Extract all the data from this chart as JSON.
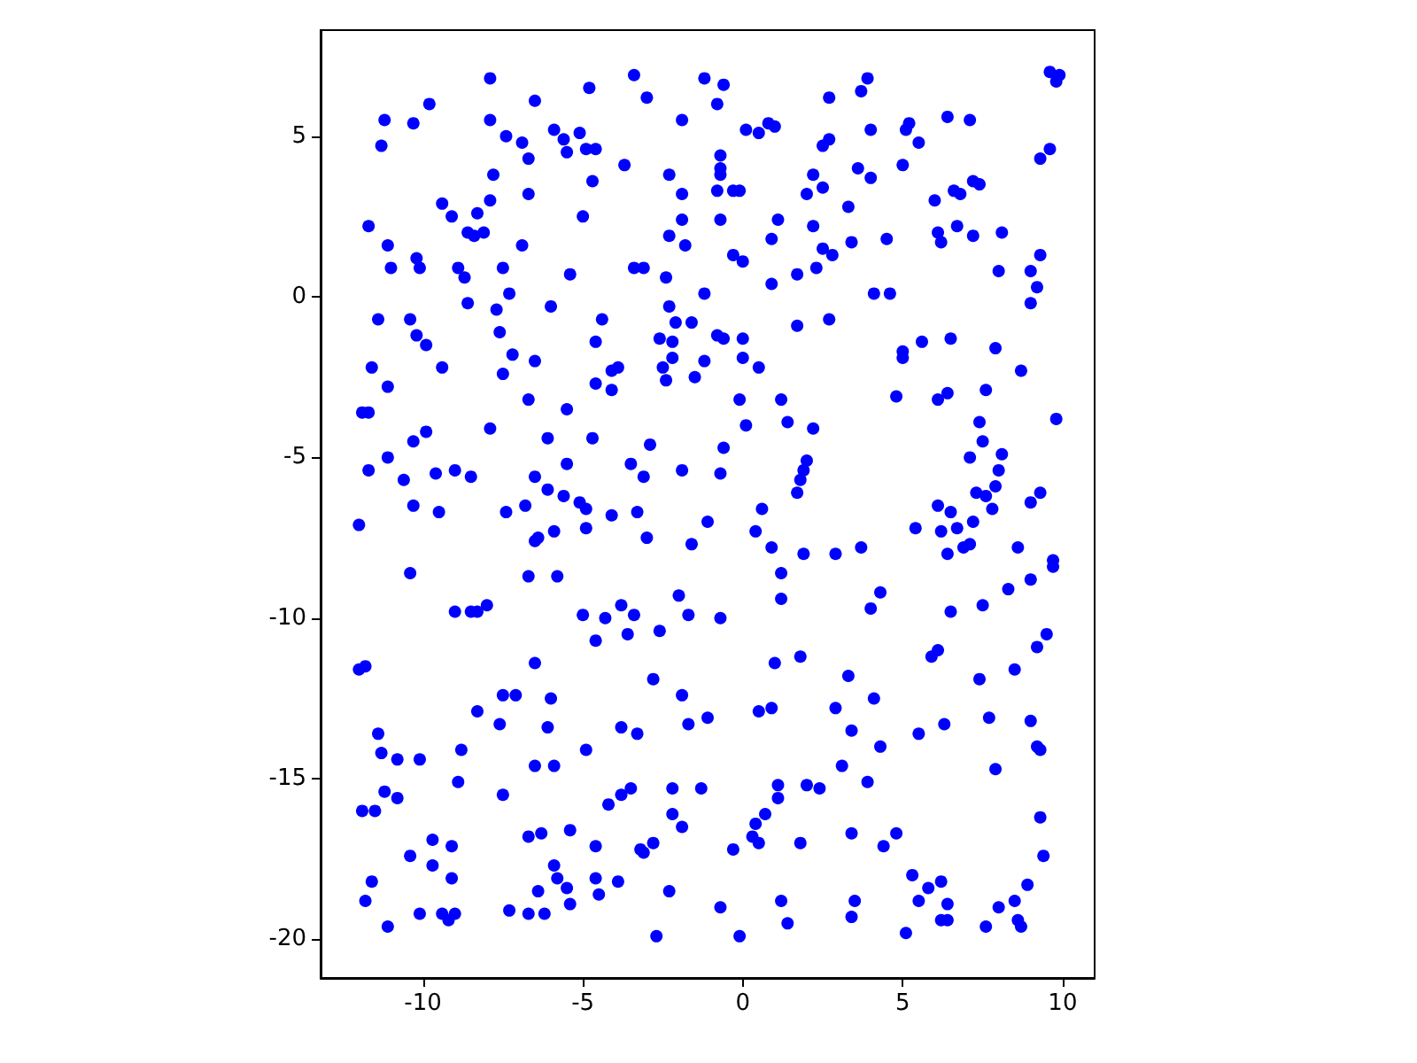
{
  "chart_data": {
    "type": "scatter",
    "color": "#0000ff",
    "marker": "circle",
    "grid": false,
    "xlim": [
      -13.2,
      11.0
    ],
    "ylim": [
      -21.2,
      8.3
    ],
    "xticks": [
      -10,
      -5,
      0,
      5,
      10
    ],
    "yticks": [
      -20,
      -15,
      -10,
      -5,
      0,
      5
    ],
    "x": [
      -7.9,
      -3.4,
      -1.2,
      -9.8,
      -4.8,
      -6.5,
      -3.0,
      -11.2,
      -10.3,
      -7.9,
      -1.9,
      -11.3,
      -7.4,
      -6.9,
      -5.9,
      -5.6,
      -5.1,
      -5.5,
      -4.9,
      -4.6,
      -6.7,
      -3.7,
      -7.8,
      -2.3,
      -4.7,
      -1.9,
      -6.7,
      -7.9,
      -9.4,
      -8.3,
      -9.1,
      -5.0,
      -1.9,
      -11.7,
      -8.6,
      -8.4,
      -8.1,
      -2.3,
      -1.8,
      -11.1,
      -6.9,
      -10.2,
      -11.0,
      -10.1,
      -8.9,
      -8.7,
      -7.5,
      -5.4,
      -3.4,
      -3.1,
      -2.4,
      -1.2,
      -7.3,
      -8.6,
      -6.0,
      -7.7,
      -2.3,
      -11.4,
      -10.4,
      -4.4,
      -2.1,
      -1.6,
      -10.2,
      -7.6,
      -2.6,
      -2.2,
      -4.6,
      -9.9,
      -0.6,
      -0.8,
      2.7,
      3.9,
      3.7,
      9.6,
      9.9,
      9.8,
      0.1,
      0.5,
      0.8,
      1.0,
      4.0,
      5.2,
      5.1,
      5.5,
      6.4,
      7.1,
      -0.7,
      -0.7,
      -0.7,
      2.7,
      2.5,
      5.0,
      9.6,
      9.3,
      2.2,
      3.6,
      4.0,
      2.5,
      2.0,
      -0.8,
      -0.3,
      -0.1,
      7.2,
      7.4,
      6.6,
      6.8,
      6.0,
      -0.7,
      1.1,
      3.3,
      0.9,
      2.2,
      3.4,
      4.5,
      6.1,
      6.7,
      7.2,
      8.1,
      6.2,
      2.5,
      2.8,
      2.3,
      -0.3,
      0.0,
      1.7,
      0.9,
      9.3,
      9.0,
      9.2,
      9.0,
      8.0,
      4.1,
      4.6,
      2.7,
      1.7,
      -0.8,
      -0.6,
      0.0,
      5.6,
      6.5,
      7.9,
      -11.6,
      -9.4,
      -7.2,
      -6.5,
      -7.5,
      -11.1,
      -4.6,
      -4.1,
      -4.1,
      -3.9,
      -2.5,
      -2.2,
      -2.4,
      -1.5,
      -1.2,
      -6.7,
      -5.5,
      -11.9,
      -11.7,
      -7.9,
      -9.9,
      -10.3,
      -6.1,
      -4.7,
      -2.9,
      -11.1,
      -11.7,
      -10.6,
      -9.6,
      -9.0,
      -8.5,
      -6.5,
      -5.5,
      -3.5,
      -3.1,
      -1.9,
      -6.1,
      -5.6,
      -5.1,
      -4.9,
      -10.3,
      -9.5,
      -7.4,
      -6.8,
      -12.0,
      -3.3,
      -4.1,
      -4.9,
      -5.9,
      -6.5,
      -6.4,
      -3.0,
      -1.1,
      -1.6,
      -10.4,
      -6.7,
      -5.8,
      -9.0,
      -8.5,
      -8.3,
      -8.0,
      -5.0,
      -4.3,
      -3.8,
      -3.4,
      -4.6,
      -3.6,
      -2.6,
      -2.0,
      -1.7,
      -6.5,
      0.0,
      0.5,
      5.0,
      5.0,
      8.7,
      4.8,
      6.1,
      6.4,
      7.6,
      -0.1,
      1.2,
      0.1,
      1.4,
      2.2,
      7.4,
      9.8,
      7.5,
      8.1,
      7.1,
      8.0,
      7.9,
      7.3,
      7.6,
      7.8,
      9.0,
      9.3,
      -0.6,
      -0.7,
      2.0,
      1.9,
      1.8,
      1.7,
      6.1,
      6.5,
      7.2,
      6.7,
      6.2,
      5.4,
      0.6,
      0.4,
      0.9,
      1.9,
      2.9,
      3.7,
      6.9,
      7.1,
      6.4,
      8.6,
      9.7,
      9.7,
      1.2,
      1.2,
      4.3,
      4.0,
      9.0,
      8.3,
      7.5,
      6.5,
      -0.7,
      9.5,
      9.2,
      5.9,
      6.1,
      1.8,
      1.0,
      -12.0,
      -11.8,
      -2.8,
      -1.9,
      -7.5,
      -7.1,
      -6.0,
      -8.3,
      -7.6,
      -6.1,
      -1.7,
      -1.1,
      -3.8,
      -3.3,
      -11.4,
      -11.3,
      -10.8,
      -10.1,
      -8.8,
      -4.9,
      -6.5,
      -5.9,
      -8.9,
      -11.2,
      -10.8,
      -11.9,
      -11.5,
      -7.5,
      -4.2,
      -3.8,
      -3.5,
      -2.2,
      -1.3,
      -2.2,
      -1.9,
      -6.7,
      -6.3,
      -5.4,
      -9.7,
      -9.1,
      -10.4,
      -9.7,
      -9.1,
      -11.6,
      -11.8,
      -11.1,
      -10.1,
      -9.4,
      -9.2,
      -9.0,
      -4.6,
      -3.2,
      -3.1,
      -2.8,
      -5.9,
      -5.8,
      -5.5,
      -5.4,
      -6.4,
      -4.6,
      -4.5,
      -3.9,
      -2.3,
      -7.3,
      -6.7,
      -6.2,
      -2.7,
      3.3,
      7.4,
      8.5,
      0.5,
      0.9,
      2.9,
      4.1,
      3.4,
      4.3,
      5.5,
      6.3,
      7.7,
      9.0,
      9.2,
      9.3,
      7.9,
      3.1,
      3.9,
      1.1,
      2.0,
      2.4,
      1.1,
      0.7,
      0.4,
      0.3,
      0.5,
      -0.3,
      1.8,
      3.4,
      4.4,
      4.8,
      9.3,
      9.4,
      5.3,
      5.8,
      6.2,
      5.5,
      6.4,
      6.2,
      6.4,
      8.9,
      8.5,
      8.0,
      8.6,
      8.7,
      7.6,
      5.1,
      -0.7,
      -0.1,
      1.2,
      1.4,
      3.5,
      3.4
    ],
    "values": [
      6.8,
      6.9,
      6.8,
      6.0,
      6.5,
      6.1,
      6.2,
      5.5,
      5.4,
      5.5,
      5.5,
      4.7,
      5.0,
      4.8,
      5.2,
      4.9,
      5.1,
      4.5,
      4.6,
      4.6,
      4.3,
      4.1,
      3.8,
      3.8,
      3.6,
      3.2,
      3.2,
      3.0,
      2.9,
      2.6,
      2.5,
      2.5,
      2.4,
      2.2,
      2.0,
      1.9,
      2.0,
      1.9,
      1.6,
      1.6,
      1.6,
      1.2,
      0.9,
      0.9,
      0.9,
      0.6,
      0.9,
      0.7,
      0.9,
      0.9,
      0.6,
      0.1,
      0.1,
      -0.2,
      -0.3,
      -0.4,
      -0.3,
      -0.7,
      -0.7,
      -0.7,
      -0.8,
      -0.8,
      -1.2,
      -1.1,
      -1.3,
      -1.4,
      -1.4,
      -1.5,
      6.6,
      6.0,
      6.2,
      6.8,
      6.4,
      7.0,
      6.9,
      6.7,
      5.2,
      5.1,
      5.4,
      5.3,
      5.2,
      5.4,
      5.2,
      4.8,
      5.6,
      5.5,
      4.4,
      4.0,
      3.8,
      4.9,
      4.7,
      4.1,
      4.6,
      4.3,
      3.8,
      4.0,
      3.7,
      3.4,
      3.2,
      3.3,
      3.3,
      3.3,
      3.6,
      3.5,
      3.3,
      3.2,
      3.0,
      2.4,
      2.4,
      2.8,
      1.8,
      2.2,
      1.7,
      1.8,
      2.0,
      2.2,
      1.9,
      2.0,
      1.7,
      1.5,
      1.3,
      0.9,
      1.3,
      1.1,
      0.7,
      0.4,
      1.3,
      0.8,
      0.3,
      -0.2,
      0.8,
      0.1,
      0.1,
      -0.7,
      -0.9,
      -1.2,
      -1.3,
      -1.3,
      -1.4,
      -1.3,
      -1.6,
      -2.2,
      -2.2,
      -1.8,
      -2.0,
      -2.4,
      -2.8,
      -2.7,
      -2.9,
      -2.3,
      -2.2,
      -2.2,
      -1.9,
      -2.6,
      -2.5,
      -2.0,
      -3.2,
      -3.5,
      -3.6,
      -3.6,
      -4.1,
      -4.2,
      -4.5,
      -4.4,
      -4.4,
      -4.6,
      -5.0,
      -5.4,
      -5.7,
      -5.5,
      -5.4,
      -5.6,
      -5.6,
      -5.2,
      -5.2,
      -5.6,
      -5.4,
      -6.0,
      -6.2,
      -6.4,
      -6.6,
      -6.5,
      -6.7,
      -6.7,
      -6.5,
      -7.1,
      -6.7,
      -6.8,
      -7.2,
      -7.3,
      -7.6,
      -7.5,
      -7.5,
      -7.0,
      -7.7,
      -8.6,
      -8.7,
      -8.7,
      -9.8,
      -9.8,
      -9.8,
      -9.6,
      -9.9,
      -10.0,
      -9.6,
      -9.9,
      -10.7,
      -10.5,
      -10.4,
      -9.3,
      -9.9,
      -11.4,
      -1.9,
      -2.2,
      -1.7,
      -1.9,
      -2.3,
      -3.1,
      -3.2,
      -3.0,
      -2.9,
      -3.2,
      -3.2,
      -4.0,
      -3.9,
      -4.1,
      -3.9,
      -3.8,
      -4.5,
      -4.9,
      -5.0,
      -5.4,
      -5.9,
      -6.1,
      -6.2,
      -6.6,
      -6.4,
      -6.1,
      -4.7,
      -5.5,
      -5.1,
      -5.4,
      -5.7,
      -6.1,
      -6.5,
      -6.7,
      -7.0,
      -7.2,
      -7.3,
      -7.2,
      -6.6,
      -7.3,
      -7.8,
      -8.0,
      -8.0,
      -7.8,
      -7.8,
      -7.7,
      -8.0,
      -7.8,
      -8.2,
      -8.4,
      -8.6,
      -9.4,
      -9.2,
      -9.7,
      -8.8,
      -9.1,
      -9.6,
      -9.8,
      -10.0,
      -10.5,
      -10.9,
      -11.2,
      -11.0,
      -11.2,
      -11.4,
      -11.6,
      -11.5,
      -11.9,
      -12.4,
      -12.4,
      -12.4,
      -12.5,
      -12.9,
      -13.3,
      -13.4,
      -13.3,
      -13.1,
      -13.4,
      -13.6,
      -13.6,
      -14.2,
      -14.4,
      -14.4,
      -14.1,
      -14.1,
      -14.6,
      -14.6,
      -15.1,
      -15.4,
      -15.6,
      -16.0,
      -16.0,
      -15.5,
      -15.8,
      -15.5,
      -15.3,
      -15.3,
      -15.3,
      -16.1,
      -16.5,
      -16.8,
      -16.7,
      -16.6,
      -16.9,
      -17.1,
      -17.4,
      -17.7,
      -18.1,
      -18.2,
      -18.8,
      -19.6,
      -19.2,
      -19.2,
      -19.4,
      -19.2,
      -17.1,
      -17.2,
      -17.3,
      -17.0,
      -17.7,
      -18.1,
      -18.4,
      -18.9,
      -18.5,
      -18.1,
      -18.6,
      -18.2,
      -18.5,
      -19.1,
      -19.2,
      -19.2,
      -19.9,
      -11.8,
      -11.9,
      -11.6,
      -12.9,
      -12.8,
      -12.8,
      -12.5,
      -13.5,
      -14.0,
      -13.6,
      -13.3,
      -13.1,
      -13.2,
      -14.0,
      -14.1,
      -14.7,
      -14.6,
      -15.1,
      -15.2,
      -15.2,
      -15.3,
      -15.6,
      -16.1,
      -16.4,
      -16.8,
      -17.0,
      -17.2,
      -17.0,
      -16.7,
      -17.1,
      -16.7,
      -16.2,
      -17.4,
      -18.0,
      -18.4,
      -18.2,
      -18.8,
      -18.9,
      -19.4,
      -19.4,
      -18.3,
      -18.8,
      -19.0,
      -19.4,
      -19.6,
      -19.6,
      -19.8,
      -19.0,
      -19.9,
      -18.8,
      -19.5,
      -18.8,
      -19.3
    ]
  }
}
